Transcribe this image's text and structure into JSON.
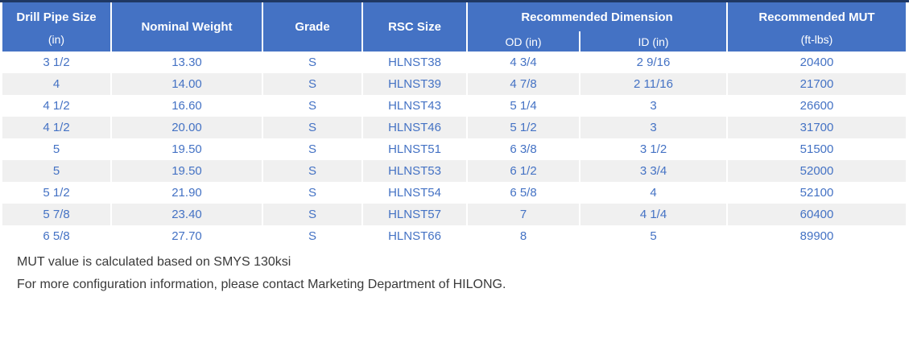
{
  "colors": {
    "header_bg": "#4472C4",
    "header_text": "#FFFFFF",
    "top_rule": "#1F3864",
    "cell_text": "#4472C4",
    "alt_row_bg": "#F0F0F0",
    "note_text": "#3A3A3A"
  },
  "table": {
    "header": {
      "drill_pipe_size": "Drill Pipe Size",
      "drill_pipe_size_unit": "(in)",
      "nominal_weight": "Nominal Weight",
      "grade": "Grade",
      "rsc_size": "RSC Size",
      "recommended_dimension": "Recommended Dimension",
      "od": "OD (in)",
      "id": "ID (in)",
      "recommended_mut": "Recommended MUT",
      "recommended_mut_unit": "(ft-lbs)"
    },
    "rows": [
      [
        "3 1/2",
        "13.30",
        "S",
        "HLNST38",
        "4 3/4",
        "2 9/16",
        "20400"
      ],
      [
        "4",
        "14.00",
        "S",
        "HLNST39",
        "4 7/8",
        "2 11/16",
        "21700"
      ],
      [
        "4 1/2",
        "16.60",
        "S",
        "HLNST43",
        "5 1/4",
        "3",
        "26600"
      ],
      [
        "4 1/2",
        "20.00",
        "S",
        "HLNST46",
        "5 1/2",
        "3",
        "31700"
      ],
      [
        "5",
        "19.50",
        "S",
        "HLNST51",
        "6 3/8",
        "3 1/2",
        "51500"
      ],
      [
        "5",
        "19.50",
        "S",
        "HLNST53",
        "6 1/2",
        "3 3/4",
        "52000"
      ],
      [
        "5 1/2",
        "21.90",
        "S",
        "HLNST54",
        "6 5/8",
        "4",
        "52100"
      ],
      [
        "5 7/8",
        "23.40",
        "S",
        "HLNST57",
        "7",
        "4 1/4",
        "60400"
      ],
      [
        "6 5/8",
        "27.70",
        "S",
        "HLNST66",
        "8",
        "5",
        "89900"
      ]
    ]
  },
  "notes": [
    "MUT value is calculated based on SMYS 130ksi",
    "For more configuration information, please contact Marketing Department of HILONG."
  ]
}
